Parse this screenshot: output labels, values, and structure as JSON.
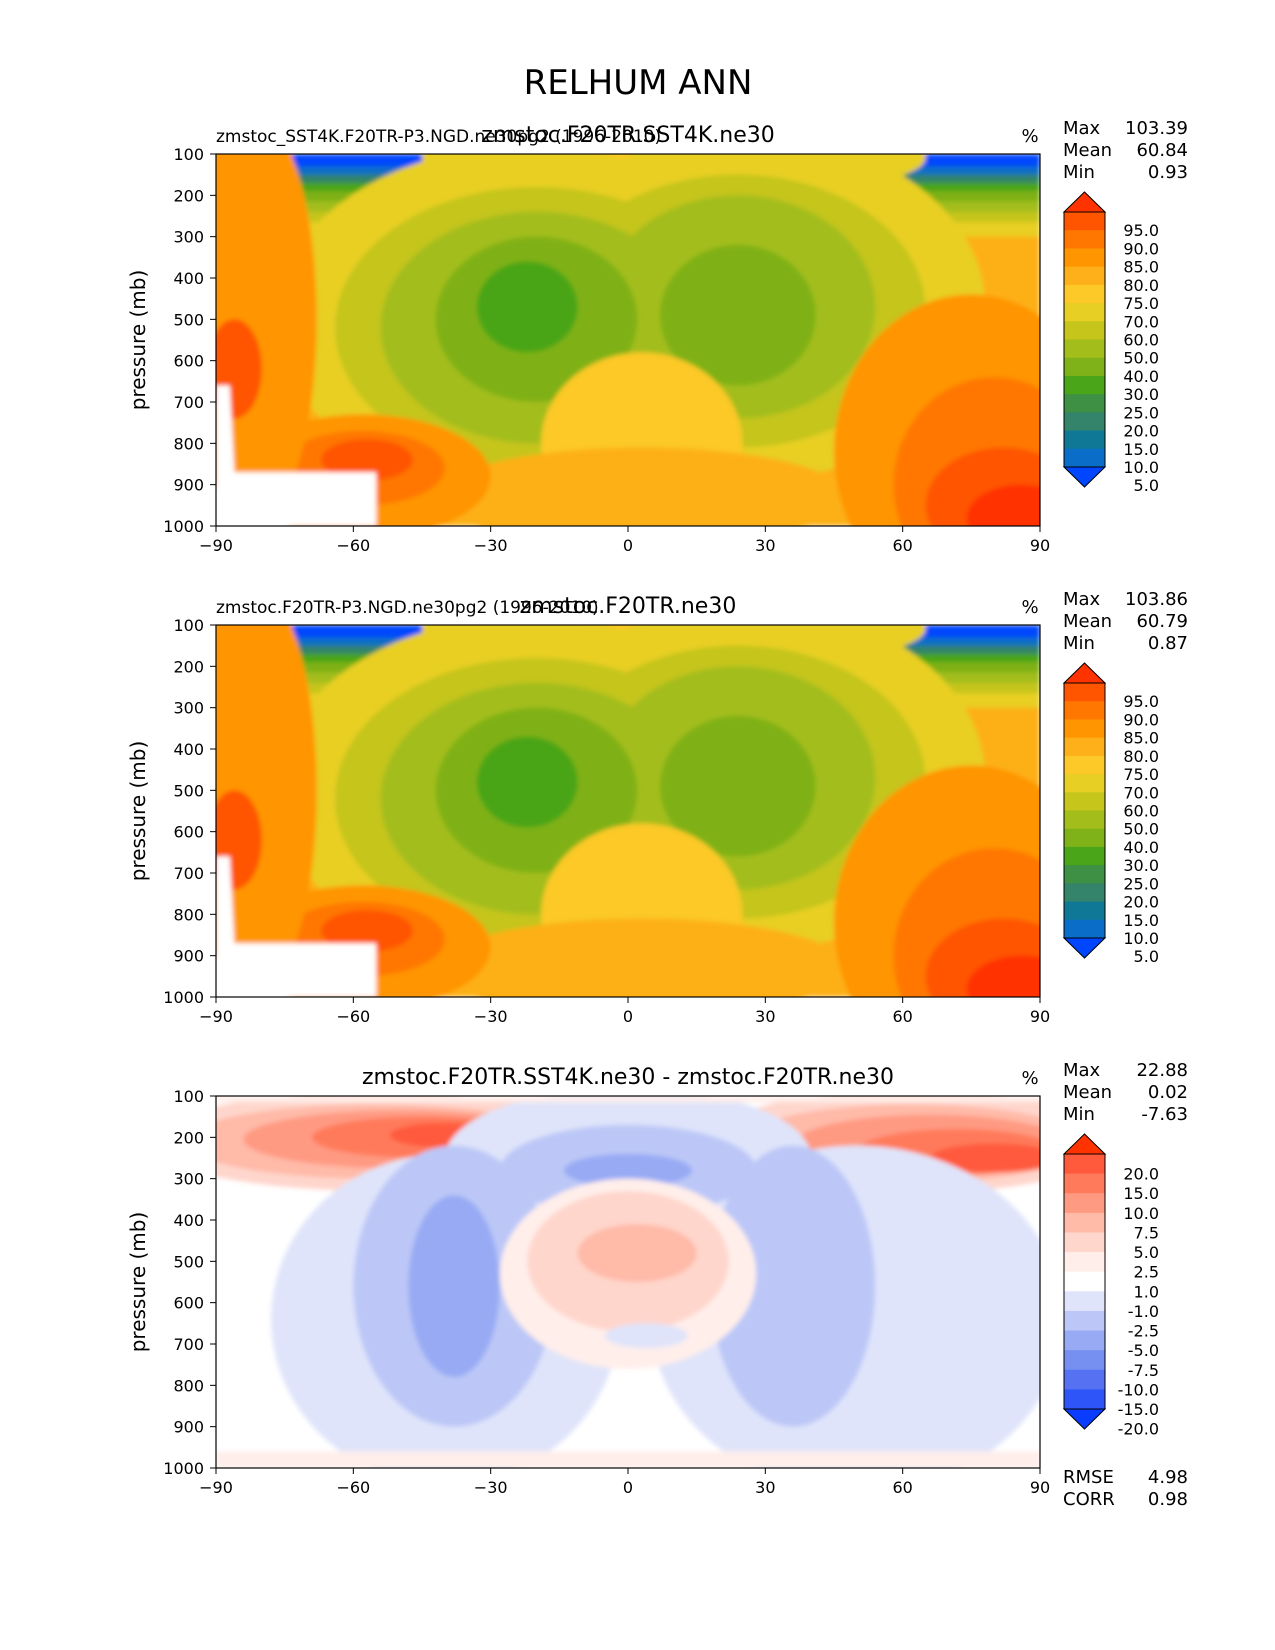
{
  "figure": {
    "title": "RELHUM ANN"
  },
  "chart_data": [
    {
      "type": "heatmap",
      "subtitle_left": "zmstoc_SST4K.F20TR-P3.NGD.ne30pg2 (1996-2010)",
      "title": "zmstoc.F20TR.SST4K.ne30",
      "units": "%",
      "xlabel": "",
      "ylabel": "pressure (mb)",
      "xlim": [
        -90,
        90
      ],
      "ylim": [
        1000,
        100
      ],
      "xticks": [
        "−90",
        "−60",
        "−30",
        "0",
        "30",
        "60",
        "90"
      ],
      "yticks": [
        "100",
        "200",
        "300",
        "400",
        "500",
        "600",
        "700",
        "800",
        "900",
        "1000"
      ],
      "stats": [
        {
          "label": "Max",
          "value": "103.39"
        },
        {
          "label": "Mean",
          "value": "60.84"
        },
        {
          "label": "Min",
          "value": "0.93"
        }
      ],
      "colorbar": {
        "levels": [
          "95.0",
          "90.0",
          "85.0",
          "80.0",
          "75.0",
          "70.0",
          "60.0",
          "50.0",
          "40.0",
          "30.0",
          "25.0",
          "20.0",
          "15.0",
          "10.0",
          "5.0"
        ],
        "colors": [
          "#ff3300",
          "#ff5500",
          "#ff7700",
          "#ff9500",
          "#fdb019",
          "#fcc928",
          "#e8cf24",
          "#c5c51c",
          "#a3bd1b",
          "#7fb119",
          "#4aa519",
          "#3d9044",
          "#33846a",
          "#0f7896",
          "#0a6ec8",
          "#0046ff"
        ]
      },
      "regions": [
        {
          "lat": "20°S",
          "p": "450 mb",
          "value_range": "30–40"
        },
        {
          "lat": "25°N",
          "p": "500 mb",
          "value_range": "40–50"
        },
        {
          "lat": "80°N",
          "p": "950 mb",
          "value_range": "95–100"
        }
      ]
    },
    {
      "type": "heatmap",
      "subtitle_left": "zmstoc.F20TR-P3.NGD.ne30pg2 (1996-2010)",
      "title": "zmstoc.F20TR.ne30",
      "units": "%",
      "xlabel": "",
      "ylabel": "pressure (mb)",
      "xlim": [
        -90,
        90
      ],
      "ylim": [
        1000,
        100
      ],
      "xticks": [
        "−90",
        "−60",
        "−30",
        "0",
        "30",
        "60",
        "90"
      ],
      "yticks": [
        "100",
        "200",
        "300",
        "400",
        "500",
        "600",
        "700",
        "800",
        "900",
        "1000"
      ],
      "stats": [
        {
          "label": "Max",
          "value": "103.86"
        },
        {
          "label": "Mean",
          "value": "60.79"
        },
        {
          "label": "Min",
          "value": "0.87"
        }
      ],
      "colorbar": {
        "levels": [
          "95.0",
          "90.0",
          "85.0",
          "80.0",
          "75.0",
          "70.0",
          "60.0",
          "50.0",
          "40.0",
          "30.0",
          "25.0",
          "20.0",
          "15.0",
          "10.0",
          "5.0"
        ],
        "colors": [
          "#ff3300",
          "#ff5500",
          "#ff7700",
          "#ff9500",
          "#fdb019",
          "#fcc928",
          "#e8cf24",
          "#c5c51c",
          "#a3bd1b",
          "#7fb119",
          "#4aa519",
          "#3d9044",
          "#33846a",
          "#0f7896",
          "#0a6ec8",
          "#0046ff"
        ]
      },
      "regions": [
        {
          "lat": "20°S",
          "p": "500 mb",
          "value_range": "30–40"
        },
        {
          "lat": "25°N",
          "p": "500 mb",
          "value_range": "40–50"
        },
        {
          "lat": "80°N",
          "p": "950 mb",
          "value_range": "95–100"
        }
      ]
    },
    {
      "type": "heatmap",
      "subtitle_left": "",
      "title": "zmstoc.F20TR.SST4K.ne30 - zmstoc.F20TR.ne30",
      "units": "%",
      "xlabel": "",
      "ylabel": "pressure (mb)",
      "xlim": [
        -90,
        90
      ],
      "ylim": [
        1000,
        100
      ],
      "xticks": [
        "−90",
        "−60",
        "−30",
        "0",
        "30",
        "60",
        "90"
      ],
      "yticks": [
        "100",
        "200",
        "300",
        "400",
        "500",
        "600",
        "700",
        "800",
        "900",
        "1000"
      ],
      "stats": [
        {
          "label": "Max",
          "value": "22.88"
        },
        {
          "label": "Mean",
          "value": "0.02"
        },
        {
          "label": "Min",
          "value": "-7.63"
        }
      ],
      "extra_stats": [
        {
          "label": "RMSE",
          "value": "4.98"
        },
        {
          "label": "CORR",
          "value": "0.98"
        }
      ],
      "colorbar": {
        "levels": [
          "20.0",
          "15.0",
          "10.0",
          "7.5",
          "5.0",
          "2.5",
          "1.0",
          "-1.0",
          "-2.5",
          "-5.0",
          "-7.5",
          "-10.0",
          "-15.0",
          "-20.0"
        ],
        "colors": [
          "#ff3300",
          "#ff5a3c",
          "#ff7a5a",
          "#ff9a82",
          "#ffbaa8",
          "#ffd6cc",
          "#ffeeea",
          "#ffffff",
          "#dfe4fa",
          "#bcc7f7",
          "#98aaf4",
          "#7690f2",
          "#5672f3",
          "#2e55f7",
          "#0a3cff"
        ]
      },
      "regions": [
        {
          "lat": "45°S",
          "p": "200 mb",
          "value_range": "15–20"
        },
        {
          "lat": "75°N",
          "p": "250 mb",
          "value_range": "20–23"
        },
        {
          "lat": "5°N",
          "p": "480 mb",
          "value_range": "5–7.5"
        },
        {
          "lat": "35°S",
          "p": "500 mb",
          "value_range": "-5–-7.5"
        },
        {
          "lat": "0°",
          "p": "280 mb",
          "value_range": "-2.5–-5"
        }
      ]
    }
  ]
}
